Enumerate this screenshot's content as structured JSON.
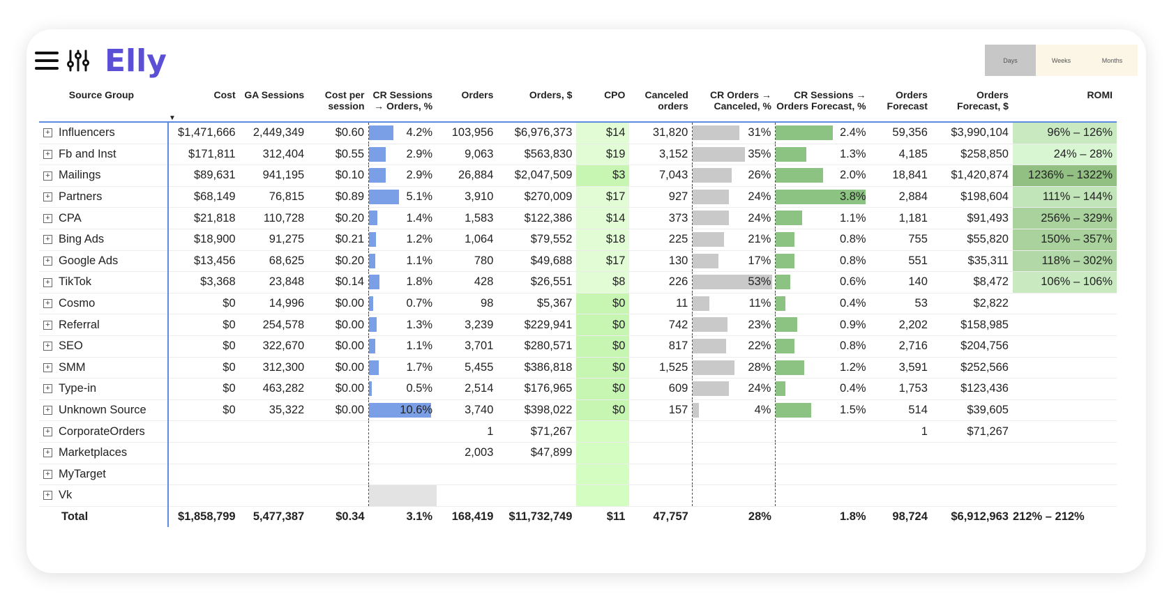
{
  "app": {
    "logo": "Elly"
  },
  "period": {
    "days": "Days",
    "weeks": "Weeks",
    "months": "Months",
    "selected": "Days"
  },
  "columns": {
    "source": "Source Group",
    "cost": "Cost",
    "sessions": "GA Sessions",
    "cps1": "Cost per",
    "cps2": "session",
    "crso1": "CR Sessions",
    "crso2": "→ Orders, %",
    "orders": "Orders",
    "orders_usd": "Orders, $",
    "cpo": "CPO",
    "canc1": "Canceled",
    "canc2": "orders",
    "cro1": "CR Orders →",
    "cro2": "Canceled, %",
    "crf1": "CR Sessions →",
    "crf2": "Orders Forecast, %",
    "of1": "Orders",
    "of2": "Forecast",
    "ofu1": "Orders",
    "ofu2": "Forecast, $",
    "romi": "ROMI"
  },
  "colors": {
    "blue_bar": "#7b9fe6",
    "gray_bar": "#c9c9c9",
    "green_bar": "#8cc383",
    "accent": "#5b4fd6",
    "cpo_bg": "#d7ffc6"
  },
  "rows": [
    {
      "name": "Influencers",
      "cost": "$1,471,666",
      "sessions": "2,449,349",
      "cps": "$0.60",
      "crso": "4.2%",
      "crso_v": 4.2,
      "orders": "103,956",
      "orders_usd": "$6,976,373",
      "cpo": "$14",
      "canc": "31,820",
      "cro": "31%",
      "cro_v": 31,
      "crf": "2.4%",
      "crf_v": 2.4,
      "of": "59,356",
      "ofu": "$3,990,104",
      "romi": "96% – 126%",
      "romi_v": 0.3
    },
    {
      "name": "Fb and Inst",
      "cost": "$171,811",
      "sessions": "312,404",
      "cps": "$0.55",
      "crso": "2.9%",
      "crso_v": 2.9,
      "orders": "9,063",
      "orders_usd": "$563,830",
      "cpo": "$19",
      "canc": "3,152",
      "cro": "35%",
      "cro_v": 35,
      "crf": "1.3%",
      "crf_v": 1.3,
      "of": "4,185",
      "ofu": "$258,850",
      "romi": "24% – 28%",
      "romi_v": 0.1
    },
    {
      "name": "Mailings",
      "cost": "$89,631",
      "sessions": "941,195",
      "cps": "$0.10",
      "crso": "2.9%",
      "crso_v": 2.9,
      "orders": "26,884",
      "orders_usd": "$2,047,509",
      "cpo": "$3",
      "canc": "7,043",
      "cro": "26%",
      "cro_v": 26,
      "crf": "2.0%",
      "crf_v": 2.0,
      "of": "18,841",
      "ofu": "$1,420,874",
      "romi": "1236% – 1322%",
      "romi_v": 1.0
    },
    {
      "name": "Partners",
      "cost": "$68,149",
      "sessions": "76,815",
      "cps": "$0.89",
      "crso": "5.1%",
      "crso_v": 5.1,
      "orders": "3,910",
      "orders_usd": "$270,009",
      "cpo": "$17",
      "canc": "927",
      "cro": "24%",
      "cro_v": 24,
      "crf": "3.8%",
      "crf_v": 3.8,
      "of": "2,884",
      "ofu": "$198,604",
      "romi": "111% – 144%",
      "romi_v": 0.4
    },
    {
      "name": "CPA",
      "cost": "$21,818",
      "sessions": "110,728",
      "cps": "$0.20",
      "crso": "1.4%",
      "crso_v": 1.4,
      "orders": "1,583",
      "orders_usd": "$122,386",
      "cpo": "$14",
      "canc": "373",
      "cro": "24%",
      "cro_v": 24,
      "crf": "1.1%",
      "crf_v": 1.1,
      "of": "1,181",
      "ofu": "$91,493",
      "romi": "256% – 329%",
      "romi_v": 0.7
    },
    {
      "name": "Bing Ads",
      "cost": "$18,900",
      "sessions": "91,275",
      "cps": "$0.21",
      "crso": "1.2%",
      "crso_v": 1.2,
      "orders": "1,064",
      "orders_usd": "$79,552",
      "cpo": "$18",
      "canc": "225",
      "cro": "21%",
      "cro_v": 21,
      "crf": "0.8%",
      "crf_v": 0.8,
      "of": "755",
      "ofu": "$55,820",
      "romi": "150% – 357%",
      "romi_v": 0.7
    },
    {
      "name": "Google Ads",
      "cost": "$13,456",
      "sessions": "68,625",
      "cps": "$0.20",
      "crso": "1.1%",
      "crso_v": 1.1,
      "orders": "780",
      "orders_usd": "$49,688",
      "cpo": "$17",
      "canc": "130",
      "cro": "17%",
      "cro_v": 17,
      "crf": "0.8%",
      "crf_v": 0.8,
      "of": "551",
      "ofu": "$35,311",
      "romi": "118% – 302%",
      "romi_v": 0.6
    },
    {
      "name": "TikTok",
      "cost": "$3,368",
      "sessions": "23,848",
      "cps": "$0.14",
      "crso": "1.8%",
      "crso_v": 1.8,
      "orders": "428",
      "orders_usd": "$26,551",
      "cpo": "$8",
      "canc": "226",
      "cro": "53%",
      "cro_v": 53,
      "crf": "0.6%",
      "crf_v": 0.6,
      "of": "140",
      "ofu": "$8,472",
      "romi": "106% – 106%",
      "romi_v": 0.3
    },
    {
      "name": "Cosmo",
      "cost": "$0",
      "sessions": "14,996",
      "cps": "$0.00",
      "crso": "0.7%",
      "crso_v": 0.7,
      "orders": "98",
      "orders_usd": "$5,367",
      "cpo": "$0",
      "canc": "11",
      "cro": "11%",
      "cro_v": 11,
      "crf": "0.4%",
      "crf_v": 0.4,
      "of": "53",
      "ofu": "$2,822",
      "romi": ""
    },
    {
      "name": "Referral",
      "cost": "$0",
      "sessions": "254,578",
      "cps": "$0.00",
      "crso": "1.3%",
      "crso_v": 1.3,
      "orders": "3,239",
      "orders_usd": "$229,941",
      "cpo": "$0",
      "canc": "742",
      "cro": "23%",
      "cro_v": 23,
      "crf": "0.9%",
      "crf_v": 0.9,
      "of": "2,202",
      "ofu": "$158,985",
      "romi": ""
    },
    {
      "name": "SEO",
      "cost": "$0",
      "sessions": "322,670",
      "cps": "$0.00",
      "crso": "1.1%",
      "crso_v": 1.1,
      "orders": "3,701",
      "orders_usd": "$280,571",
      "cpo": "$0",
      "canc": "817",
      "cro": "22%",
      "cro_v": 22,
      "crf": "0.8%",
      "crf_v": 0.8,
      "of": "2,716",
      "ofu": "$204,756",
      "romi": ""
    },
    {
      "name": "SMM",
      "cost": "$0",
      "sessions": "312,300",
      "cps": "$0.00",
      "crso": "1.7%",
      "crso_v": 1.7,
      "orders": "5,455",
      "orders_usd": "$386,818",
      "cpo": "$0",
      "canc": "1,525",
      "cro": "28%",
      "cro_v": 28,
      "crf": "1.2%",
      "crf_v": 1.2,
      "of": "3,591",
      "ofu": "$252,566",
      "romi": ""
    },
    {
      "name": "Type-in",
      "cost": "$0",
      "sessions": "463,282",
      "cps": "$0.00",
      "crso": "0.5%",
      "crso_v": 0.5,
      "orders": "2,514",
      "orders_usd": "$176,965",
      "cpo": "$0",
      "canc": "609",
      "cro": "24%",
      "cro_v": 24,
      "crf": "0.4%",
      "crf_v": 0.4,
      "of": "1,753",
      "ofu": "$123,436",
      "romi": ""
    },
    {
      "name": "Unknown Source",
      "cost": "$0",
      "sessions": "35,322",
      "cps": "$0.00",
      "crso": "10.6%",
      "crso_v": 10.6,
      "orders": "3,740",
      "orders_usd": "$398,022",
      "cpo": "$0",
      "canc": "157",
      "cro": "4%",
      "cro_v": 4,
      "crf": "1.5%",
      "crf_v": 1.5,
      "of": "514",
      "ofu": "$39,605",
      "romi": ""
    },
    {
      "name": "CorporateOrders",
      "cost": "",
      "sessions": "",
      "cps": "",
      "crso": "",
      "orders": "1",
      "orders_usd": "$71,267",
      "cpo": "",
      "canc": "",
      "cro": "",
      "crf": "",
      "of": "1",
      "ofu": "$71,267",
      "romi": ""
    },
    {
      "name": "Marketplaces",
      "cost": "",
      "sessions": "",
      "cps": "",
      "crso": "",
      "orders": "2,003",
      "orders_usd": "$47,899",
      "cpo": "",
      "canc": "",
      "cro": "",
      "crf": "",
      "of": "",
      "ofu": "",
      "romi": ""
    },
    {
      "name": "MyTarget",
      "cost": "",
      "sessions": "",
      "cps": "",
      "crso": "",
      "orders": "",
      "orders_usd": "",
      "cpo": "",
      "canc": "",
      "cro": "",
      "crf": "",
      "of": "",
      "ofu": "",
      "romi": ""
    },
    {
      "name": "Vk",
      "cost": "",
      "sessions": "",
      "cps": "",
      "crso": "",
      "orders": "",
      "orders_usd": "",
      "cpo": "",
      "canc": "",
      "cro": "",
      "crf": "",
      "of": "",
      "ofu": "",
      "romi": "",
      "crso_placeholder": true
    }
  ],
  "total": {
    "name": "Total",
    "cost": "$1,858,799",
    "sessions": "5,477,387",
    "cps": "$0.34",
    "crso": "3.1%",
    "orders": "168,419",
    "orders_usd": "$11,732,749",
    "cpo": "$11",
    "canc": "47,757",
    "cro": "28%",
    "crf": "1.8%",
    "of": "98,724",
    "ofu": "$6,912,963",
    "romi": "212% – 212%"
  }
}
